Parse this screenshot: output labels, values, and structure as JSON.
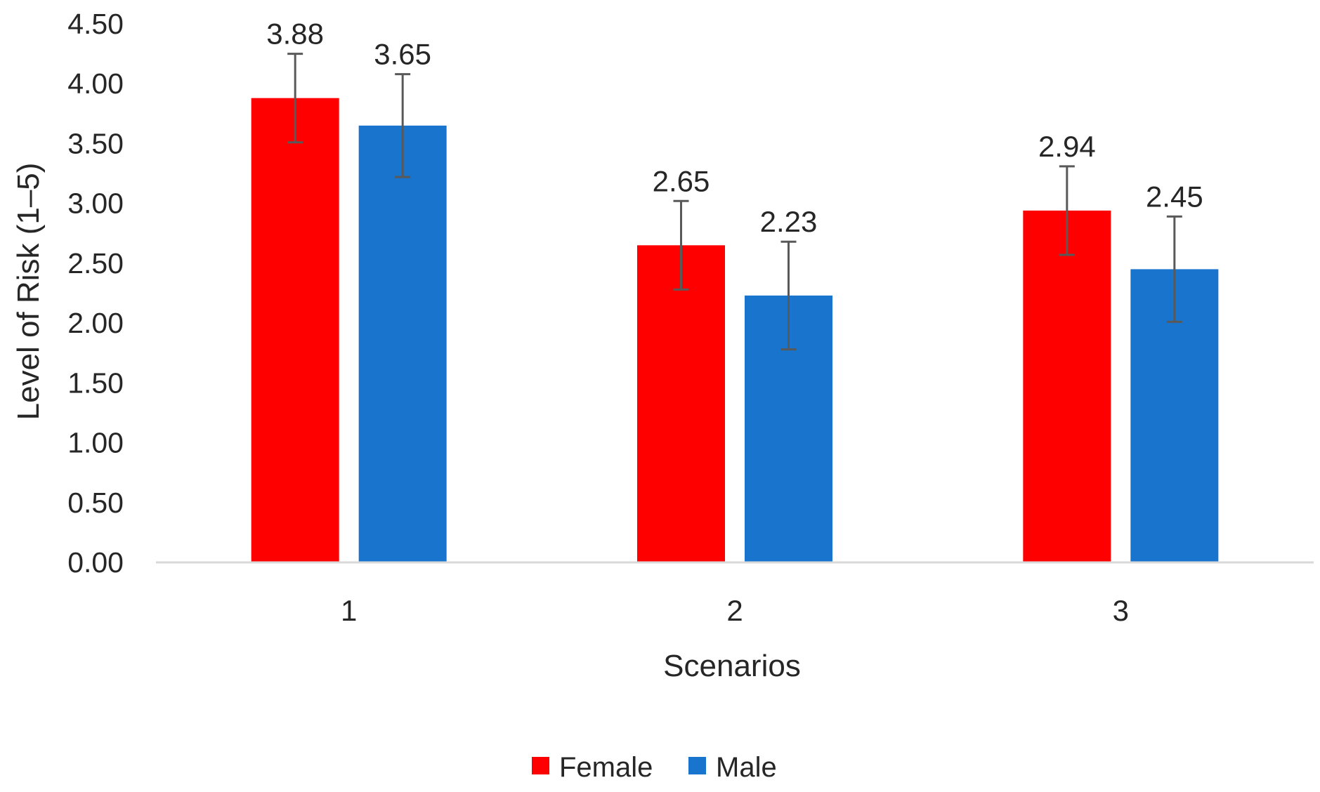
{
  "chart_data": {
    "type": "bar",
    "title": "",
    "xlabel": "Scenarios",
    "ylabel": "Level of Risk (1–5)",
    "ylim": [
      0,
      4.5
    ],
    "ytick_step": 0.5,
    "ytick_labels": [
      "0.00",
      "0.50",
      "1.00",
      "1.50",
      "2.00",
      "2.50",
      "3.00",
      "3.50",
      "4.00",
      "4.50"
    ],
    "categories": [
      "1",
      "2",
      "3"
    ],
    "series": [
      {
        "name": "Female",
        "color": "#ff0000",
        "values": [
          3.88,
          2.65,
          2.94
        ],
        "value_labels": [
          "3.88",
          "2.65",
          "2.94"
        ],
        "error": [
          0.37,
          0.37,
          0.37
        ]
      },
      {
        "name": "Male",
        "color": "#1874cd",
        "values": [
          3.65,
          2.23,
          2.45
        ],
        "value_labels": [
          "3.65",
          "2.23",
          "2.45"
        ],
        "error": [
          0.43,
          0.45,
          0.44
        ]
      }
    ],
    "legend": {
      "position": "bottom",
      "entries": [
        "Female",
        "Male"
      ]
    },
    "grid": false,
    "error_bar_color": "#595959",
    "axis_color": "#d9d9d9"
  }
}
